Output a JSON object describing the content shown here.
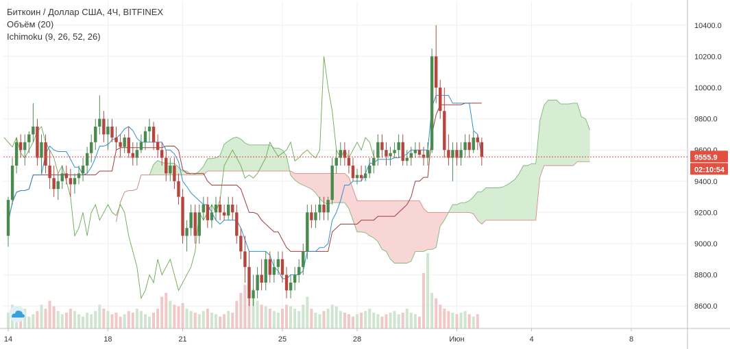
{
  "header": {
    "title": "Биткоин / Доллар США, 4Ч, BITFINEX",
    "indicator_volume": "Объём (20)",
    "indicator_ichimoku": "Ichimoku (9, 26, 52, 26)"
  },
  "colors": {
    "up": "#4a8a4e",
    "down": "#b5463f",
    "kumo_bull": "#d6ecd3",
    "kumo_bear": "#f8d6d6",
    "tenkan": "#2f8fd0",
    "kijun": "#a23a3a",
    "chikou": "#6aa84f",
    "price_box": "#e15040"
  },
  "icons": {
    "logo": "tradingview-cloud-icon"
  },
  "chart_data": {
    "type": "candlestick",
    "symbol": "Биткоин / Доллар США",
    "interval": "4Ч",
    "exchange": "BITFINEX",
    "ylim": [
      8500,
      10500
    ],
    "y_ticks": [
      "10400.0",
      "10200.0",
      "10000.0",
      "9800.0",
      "9600.0",
      "9400.0",
      "9200.0",
      "9000.0",
      "8800.0",
      "8600.0"
    ],
    "x_ticks": [
      "14",
      "18",
      "21",
      "25",
      "28",
      "Июн",
      "4",
      "8"
    ],
    "x_tick_index": [
      0,
      24,
      42,
      66,
      84,
      108,
      126,
      150
    ],
    "last_price": "9555.9",
    "countdown": "02:10:54",
    "grid": true,
    "candles": [
      [
        9050,
        9300,
        8980,
        9280
      ],
      [
        9280,
        9550,
        9250,
        9500
      ],
      [
        9500,
        9680,
        9450,
        9650
      ],
      [
        9650,
        9700,
        9550,
        9600
      ],
      [
        9600,
        9700,
        9500,
        9650
      ],
      [
        9650,
        9720,
        9580,
        9700
      ],
      [
        9700,
        9900,
        9650,
        9750
      ],
      [
        9750,
        9800,
        9500,
        9550
      ],
      [
        9550,
        9700,
        9450,
        9650
      ],
      [
        9650,
        9700,
        9450,
        9500
      ],
      [
        9500,
        9600,
        9350,
        9420
      ],
      [
        9420,
        9500,
        9300,
        9350
      ],
      [
        9350,
        9450,
        9280,
        9400
      ],
      [
        9400,
        9500,
        9350,
        9450
      ],
      [
        9450,
        9500,
        9380,
        9420
      ],
      [
        9420,
        9480,
        9300,
        9380
      ],
      [
        9380,
        9450,
        9320,
        9420
      ],
      [
        9420,
        9500,
        9380,
        9450
      ],
      [
        9450,
        9550,
        9400,
        9500
      ],
      [
        9500,
        9620,
        9450,
        9580
      ],
      [
        9580,
        9700,
        9520,
        9650
      ],
      [
        9650,
        9800,
        9600,
        9750
      ],
      [
        9750,
        9950,
        9700,
        9800
      ],
      [
        9800,
        9850,
        9650,
        9700
      ],
      [
        9700,
        9800,
        9600,
        9750
      ],
      [
        9750,
        9800,
        9650,
        9680
      ],
      [
        9680,
        9750,
        9600,
        9650
      ],
      [
        9650,
        9700,
        9550,
        9620
      ],
      [
        9620,
        9700,
        9580,
        9680
      ],
      [
        9680,
        9750,
        9550,
        9580
      ],
      [
        9580,
        9650,
        9500,
        9550
      ],
      [
        9550,
        9650,
        9500,
        9600
      ],
      [
        9600,
        9700,
        9580,
        9650
      ],
      [
        9650,
        9750,
        9600,
        9720
      ],
      [
        9720,
        9800,
        9650,
        9750
      ],
      [
        9750,
        9780,
        9600,
        9650
      ],
      [
        9650,
        9700,
        9550,
        9600
      ],
      [
        9600,
        9650,
        9500,
        9550
      ],
      [
        9550,
        9600,
        9400,
        9450
      ],
      [
        9450,
        9550,
        9400,
        9500
      ],
      [
        9500,
        9550,
        9350,
        9400
      ],
      [
        9400,
        9450,
        9250,
        9300
      ],
      [
        9300,
        9350,
        9000,
        9050
      ],
      [
        9050,
        9150,
        8950,
        9100
      ],
      [
        9100,
        9250,
        9050,
        9200
      ],
      [
        9200,
        9250,
        9000,
        9050
      ],
      [
        9050,
        9250,
        9000,
        9200
      ],
      [
        9200,
        9300,
        9150,
        9250
      ],
      [
        9250,
        9300,
        9100,
        9150
      ],
      [
        9150,
        9250,
        9100,
        9200
      ],
      [
        9200,
        9300,
        9150,
        9250
      ],
      [
        9250,
        9300,
        9150,
        9200
      ],
      [
        9200,
        9250,
        9150,
        9180
      ],
      [
        9180,
        9300,
        9150,
        9250
      ],
      [
        9250,
        9300,
        9150,
        9200
      ],
      [
        9200,
        9250,
        9000,
        9050
      ],
      [
        9050,
        9100,
        8900,
        8950
      ],
      [
        8950,
        9050,
        8750,
        8850
      ],
      [
        8850,
        8950,
        8600,
        8650
      ],
      [
        8650,
        8800,
        8600,
        8700
      ],
      [
        8700,
        8850,
        8650,
        8800
      ],
      [
        8800,
        8900,
        8700,
        8750
      ],
      [
        8750,
        8950,
        8700,
        8900
      ],
      [
        8900,
        8950,
        8750,
        8800
      ],
      [
        8800,
        8900,
        8750,
        8850
      ],
      [
        8850,
        8950,
        8800,
        8900
      ],
      [
        8900,
        8950,
        8750,
        8800
      ],
      [
        8800,
        8850,
        8650,
        8700
      ],
      [
        8700,
        8800,
        8650,
        8750
      ],
      [
        8750,
        8850,
        8700,
        8800
      ],
      [
        8800,
        8900,
        8750,
        8850
      ],
      [
        8850,
        9000,
        8800,
        8950
      ],
      [
        8950,
        9250,
        8900,
        9200
      ],
      [
        9200,
        9250,
        9100,
        9150
      ],
      [
        9150,
        9250,
        9100,
        9200
      ],
      [
        9200,
        9300,
        9150,
        9250
      ],
      [
        9250,
        9300,
        9150,
        9200
      ],
      [
        9200,
        9300,
        9150,
        9280
      ],
      [
        9280,
        9550,
        9250,
        9500
      ],
      [
        9500,
        9600,
        9450,
        9550
      ],
      [
        9550,
        9650,
        9500,
        9600
      ],
      [
        9600,
        9650,
        9500,
        9550
      ],
      [
        9550,
        9600,
        9450,
        9500
      ],
      [
        9500,
        9550,
        9400,
        9420
      ],
      [
        9420,
        9480,
        9380,
        9440
      ],
      [
        9440,
        9500,
        9400,
        9420
      ],
      [
        9420,
        9500,
        9400,
        9450
      ],
      [
        9450,
        9550,
        9420,
        9500
      ],
      [
        9500,
        9600,
        9450,
        9550
      ],
      [
        9550,
        9700,
        9500,
        9650
      ],
      [
        9650,
        9700,
        9550,
        9600
      ],
      [
        9600,
        9650,
        9500,
        9560
      ],
      [
        9560,
        9620,
        9500,
        9580
      ],
      [
        9580,
        9650,
        9550,
        9600
      ],
      [
        9600,
        9700,
        9550,
        9650
      ],
      [
        9650,
        9700,
        9500,
        9530
      ],
      [
        9530,
        9600,
        9500,
        9550
      ],
      [
        9550,
        9620,
        9500,
        9580
      ],
      [
        9580,
        9650,
        9550,
        9600
      ],
      [
        9600,
        9650,
        9550,
        9570
      ],
      [
        9570,
        9620,
        9500,
        9550
      ],
      [
        9550,
        9650,
        9500,
        9600
      ],
      [
        9600,
        10250,
        9580,
        10200
      ],
      [
        10200,
        10400,
        9900,
        10000
      ],
      [
        10000,
        10050,
        9800,
        9850
      ],
      [
        9850,
        10000,
        9550,
        9600
      ],
      [
        9600,
        9700,
        9500,
        9550
      ],
      [
        9550,
        9650,
        9400,
        9600
      ],
      [
        9600,
        9650,
        9500,
        9550
      ],
      [
        9550,
        9650,
        9500,
        9600
      ],
      [
        9600,
        9700,
        9550,
        9650
      ],
      [
        9650,
        9700,
        9550,
        9600
      ],
      [
        9600,
        9720,
        9580,
        9680
      ],
      [
        9680,
        9700,
        9600,
        9650
      ],
      [
        9650,
        9680,
        9500,
        9555.9
      ]
    ],
    "volumes": [
      20,
      30,
      18,
      22,
      25,
      15,
      18,
      22,
      30,
      25,
      35,
      28,
      22,
      18,
      20,
      25,
      22,
      18,
      15,
      20,
      18,
      22,
      30,
      25,
      22,
      18,
      20,
      15,
      18,
      22,
      20,
      25,
      22,
      18,
      15,
      20,
      25,
      40,
      45,
      35,
      30,
      28,
      32,
      25,
      22,
      20,
      18,
      22,
      25,
      20,
      18,
      15,
      18,
      22,
      20,
      35,
      45,
      55,
      60,
      50,
      35,
      30,
      28,
      25,
      22,
      20,
      25,
      30,
      28,
      25,
      22,
      30,
      40,
      25,
      20,
      18,
      22,
      25,
      30,
      28,
      22,
      20,
      18,
      15,
      18,
      20,
      22,
      25,
      20,
      18,
      15,
      18,
      20,
      22,
      18,
      20,
      25,
      20,
      18,
      15,
      70,
      95,
      45,
      38,
      30,
      25,
      22,
      20,
      18,
      20,
      22,
      18,
      15,
      18
    ]
  }
}
